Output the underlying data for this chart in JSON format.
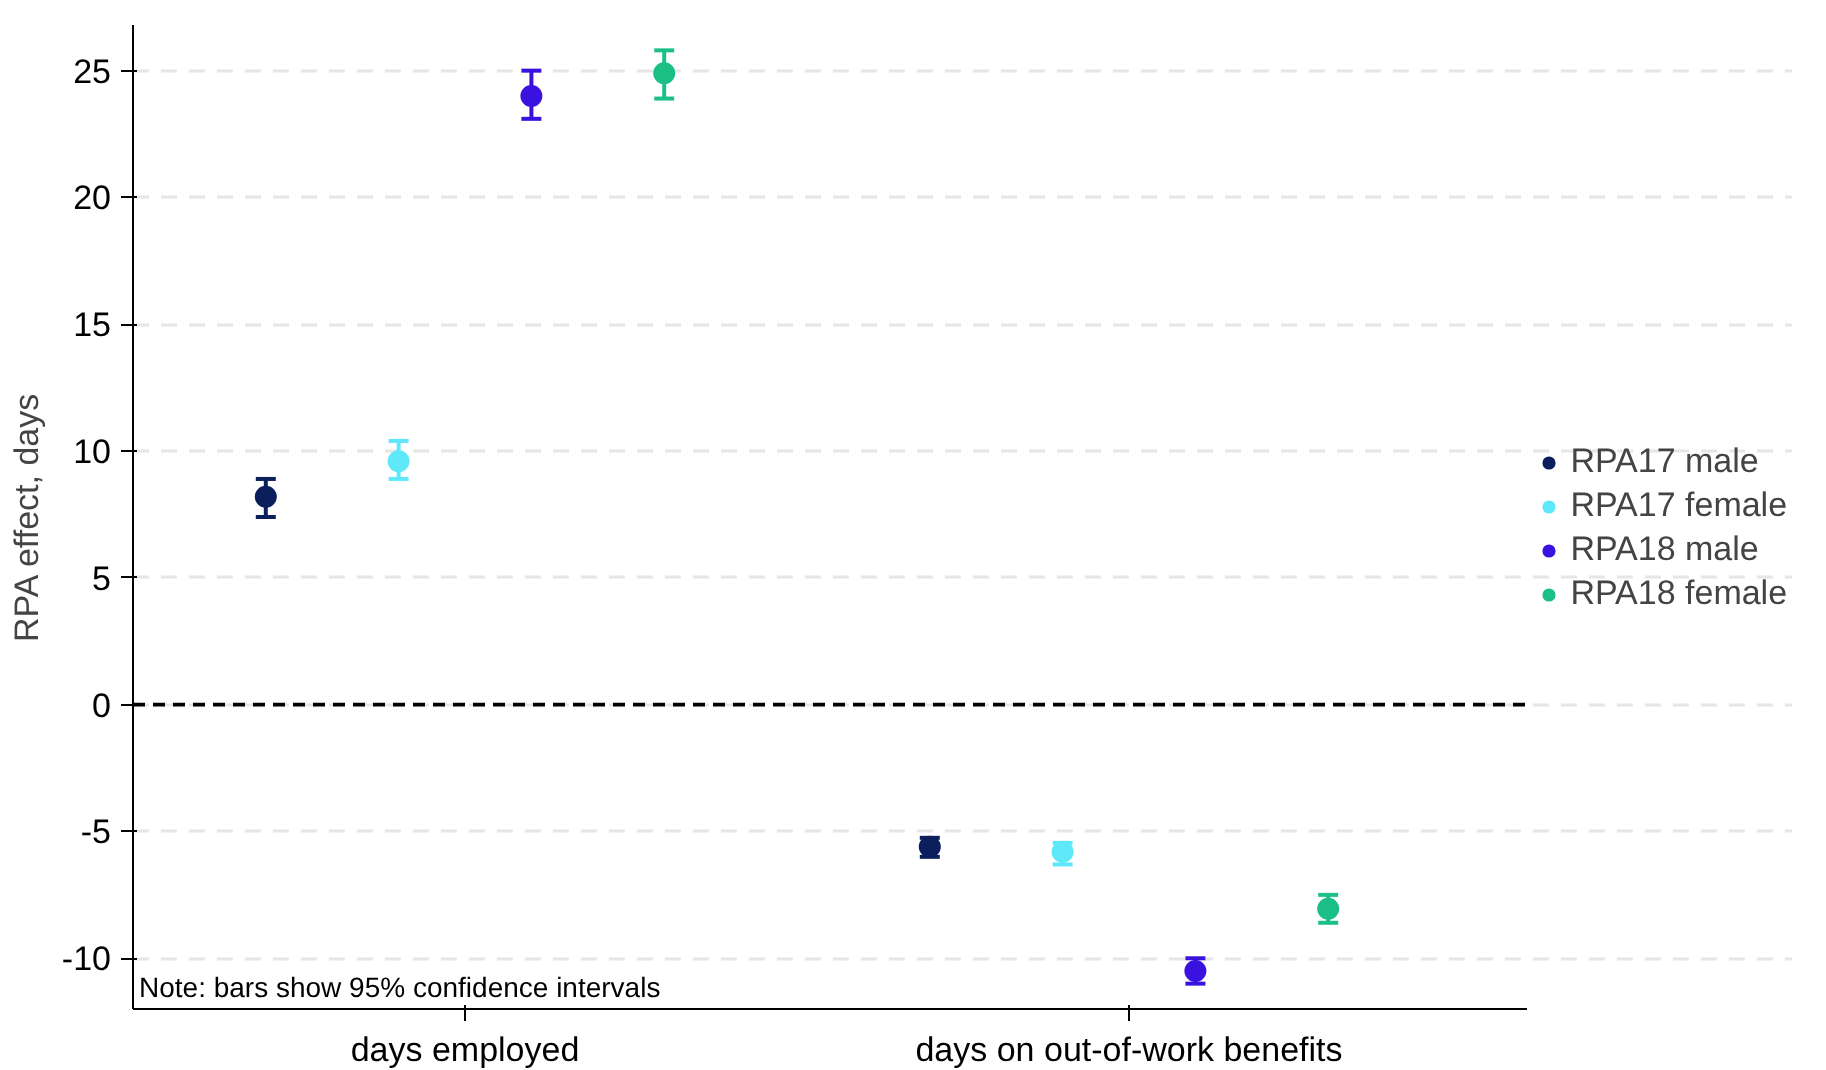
{
  "chart_data": {
    "type": "scatter",
    "ylabel": "RPA effect, days",
    "categories": [
      "days employed",
      "days on out-of-work benefits"
    ],
    "series": [
      {
        "name": "RPA17 male",
        "color": "#0b1f5c",
        "values": [
          8.2,
          -5.6
        ],
        "errors": [
          [
            7.4,
            8.9
          ],
          [
            -6.0,
            -5.25
          ]
        ]
      },
      {
        "name": "RPA17 female",
        "color": "#5ee8fa",
        "values": [
          9.6,
          -5.8
        ],
        "errors": [
          [
            8.9,
            10.4
          ],
          [
            -6.3,
            -5.45
          ]
        ]
      },
      {
        "name": "RPA18 male",
        "color": "#3a12e0",
        "values": [
          24.0,
          -10.5
        ],
        "errors": [
          [
            23.1,
            25.0
          ],
          [
            -11.0,
            -10.0
          ]
        ]
      },
      {
        "name": "RPA18 female",
        "color": "#1cbf85",
        "values": [
          24.9,
          -8.05
        ],
        "errors": [
          [
            23.9,
            25.8
          ],
          [
            -8.6,
            -7.5
          ]
        ]
      }
    ],
    "ylim": [
      -12,
      26.8
    ],
    "yticks": [
      -10,
      -5,
      0,
      5,
      10,
      15,
      20,
      25
    ],
    "grid": "y",
    "legend": "right",
    "marker": "circle",
    "ref_lines": [
      {
        "axis": "y",
        "value": 0,
        "label": null,
        "color": "#000000",
        "line_style": "dashed"
      }
    ],
    "annotations": [
      "Note: bars show 95% confidence intervals"
    ]
  }
}
